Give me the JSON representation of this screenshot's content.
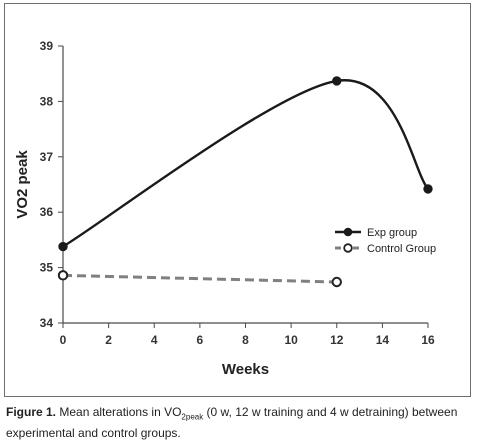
{
  "chart_data": {
    "type": "line",
    "xlabel": "Weeks",
    "ylabel": "VO2 peak",
    "xlim": [
      0,
      16
    ],
    "ylim": [
      34,
      39
    ],
    "xticks": [
      "0",
      "2",
      "4",
      "6",
      "8",
      "10",
      "12",
      "14",
      "16"
    ],
    "yticks": [
      "34",
      "35",
      "36",
      "37",
      "38",
      "39"
    ],
    "grid": false,
    "legend": "center-right",
    "series": [
      {
        "name": "Exp group",
        "x": [
          0,
          12,
          16
        ],
        "y": [
          35.38,
          38.37,
          36.42
        ],
        "color": "#1a1a1a",
        "style": "solid",
        "marker": "filled-circle"
      },
      {
        "name": "Control Group",
        "x": [
          0,
          12
        ],
        "y": [
          34.86,
          34.74
        ],
        "color": "#808080",
        "style": "dashed",
        "marker": "open-circle"
      }
    ]
  },
  "caption": {
    "label": "Figure 1.",
    "text_before": " Mean alterations in VO",
    "sub": "2peak",
    "text_after": " (0 w, 12 w training and 4 w detraining) between experimental and control groups."
  }
}
